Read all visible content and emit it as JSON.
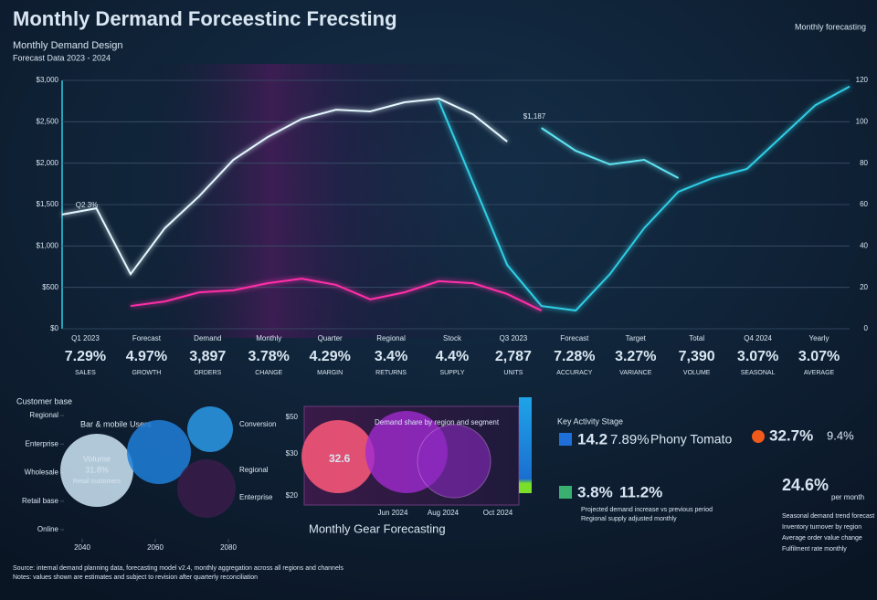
{
  "header": {
    "title": "Monthly Dermand Forceestinc Frecsting",
    "subtitle": "Monthly Demand Design",
    "note": "Forecast Data 2023 - 2024",
    "top_right": "Monthly forecasting"
  },
  "chart_data": [
    {
      "type": "line",
      "x": [
        0,
        1,
        2,
        3,
        4,
        5,
        6,
        7,
        8,
        9,
        10,
        11,
        12,
        13,
        14,
        15,
        16,
        17,
        18,
        19,
        20,
        21,
        22,
        23
      ],
      "xlim": [
        0,
        23
      ],
      "ylim": [
        0,
        3000
      ],
      "yticks": [
        {
          "value": 0,
          "label": "$0"
        },
        {
          "value": 500,
          "label": "$500"
        },
        {
          "value": 1000,
          "label": "$1,000"
        },
        {
          "value": 1500,
          "label": "$1,500"
        },
        {
          "value": 2000,
          "label": "$2,000"
        },
        {
          "value": 2500,
          "label": "$2,500"
        },
        {
          "value": 3000,
          "label": "$3,000"
        }
      ],
      "y2lim": [
        0,
        120
      ],
      "y2ticks": [
        0,
        20,
        40,
        60,
        80,
        100,
        120
      ],
      "grid": true,
      "annotations": [
        "$1,187",
        "Q2 3%"
      ],
      "series": [
        {
          "color": "#e4f8ff",
          "values": [
            1380,
            1455,
            660,
            1215,
            1600,
            2040,
            2315,
            2535,
            2645,
            2625,
            2735,
            2780,
            2590,
            2260,
            null,
            null,
            null,
            null,
            null,
            null,
            null,
            null,
            null,
            null
          ]
        },
        {
          "color": "#2fcfe6",
          "values": [
            null,
            null,
            null,
            null,
            null,
            null,
            null,
            null,
            null,
            null,
            null,
            2755,
            1765,
            770,
            275,
            220,
            660,
            1215,
            1655,
            1820,
            1930,
            2315,
            2700,
            2925
          ]
        },
        {
          "color": "#5fe4f2",
          "values": [
            null,
            null,
            null,
            null,
            null,
            null,
            null,
            null,
            null,
            null,
            null,
            null,
            null,
            null,
            2425,
            2150,
            1985,
            2040,
            1820,
            null,
            null,
            null,
            null,
            null
          ]
        },
        {
          "color": "#ff2fa8",
          "values": [
            null,
            null,
            275,
            330,
            440,
            465,
            550,
            605,
            530,
            355,
            440,
            575,
            550,
            420,
            220,
            null,
            null,
            null,
            null,
            null,
            null,
            null,
            null,
            null
          ]
        }
      ]
    },
    {
      "type": "bubble",
      "title": "Customer base",
      "x": [
        2044,
        2061,
        2075,
        2074
      ],
      "values": [
        52,
        68,
        88,
        36
      ],
      "sizes": [
        40,
        35,
        25,
        32
      ],
      "colors": [
        "#cfe6f7",
        "#1f7fd8",
        "#2a9ae8",
        "#3a1c4a"
      ],
      "xlim": [
        2035,
        2085
      ],
      "xticks": [
        2040,
        2060,
        2080
      ],
      "ylim": [
        0,
        100
      ],
      "yticks": [
        {
          "value": 0,
          "label": "Online"
        },
        {
          "value": 25,
          "label": "Retail base"
        },
        {
          "value": 50,
          "label": "Wholesale"
        },
        {
          "value": 75,
          "label": "Enterprise"
        },
        {
          "value": 100,
          "label": "Regional"
        }
      ]
    }
  ],
  "kpis": [
    {
      "label": "Q1 2023",
      "value": "7.29%",
      "caption": "SALES"
    },
    {
      "label": "Forecast",
      "value": "4.97%",
      "caption": "GROWTH"
    },
    {
      "label": "Demand",
      "value": "3,897",
      "caption": "ORDERS"
    },
    {
      "label": "Monthly",
      "value": "3.78%",
      "caption": "CHANGE"
    },
    {
      "label": "Quarter",
      "value": "4.29%",
      "caption": "MARGIN"
    },
    {
      "label": "Regional",
      "value": "3.4%",
      "caption": "RETURNS"
    },
    {
      "label": "Stock",
      "value": "4.4%",
      "caption": "SUPPLY"
    },
    {
      "label": "Q3 2023",
      "value": "2,787",
      "caption": "UNITS"
    },
    {
      "label": "Forecast",
      "value": "7.28%",
      "caption": "ACCURACY"
    },
    {
      "label": "Target",
      "value": "3.27%",
      "caption": "VARIANCE"
    },
    {
      "label": "Total",
      "value": "7,390",
      "caption": "VOLUME"
    },
    {
      "label": "Q4 2024",
      "value": "3.07%",
      "caption": "SEASONAL"
    },
    {
      "label": "Yearly",
      "value": "3.07%",
      "caption": "AVERAGE"
    }
  ],
  "customer_panel": {
    "labels": [
      "Bar & mobile Users",
      "Conversion",
      "Regional",
      "Enterprise"
    ],
    "bubble_text": [
      "Volume",
      "31.8%",
      "Retail customers"
    ]
  },
  "venn": {
    "title": "Monthly Gear Forecasting",
    "header": "Demand share by region and segment",
    "axis_labels": [
      "$50",
      "$30",
      "$20"
    ],
    "center_label": "32.6",
    "footer_labels": [
      "Jun 2024",
      "Aug 2024",
      "Oct 2024"
    ]
  },
  "stats": {
    "title": "Key Activity Stage",
    "row1": {
      "value": "14.2",
      "pct": "7.89%",
      "label": "Phony Tomato"
    },
    "row2": {
      "value": "3.8%",
      "pct": "11.2%",
      "lines": [
        "Projected demand increase vs previous period",
        "Regional supply adjusted monthly"
      ]
    },
    "side": {
      "value": "32.7%",
      "pct": "9.4%",
      "big": "24.6%",
      "big_note": "per month",
      "lines": [
        "Seasonal demand trend forecast",
        "Inventory turnover by region",
        "Average order value change",
        "Fulfilment rate monthly"
      ]
    }
  },
  "footer": [
    "Source: internal demand planning data, forecasting model v2.4, monthly aggregation across all regions and channels",
    "Notes: values shown are estimates and subject to revision after quarterly reconciliation"
  ]
}
